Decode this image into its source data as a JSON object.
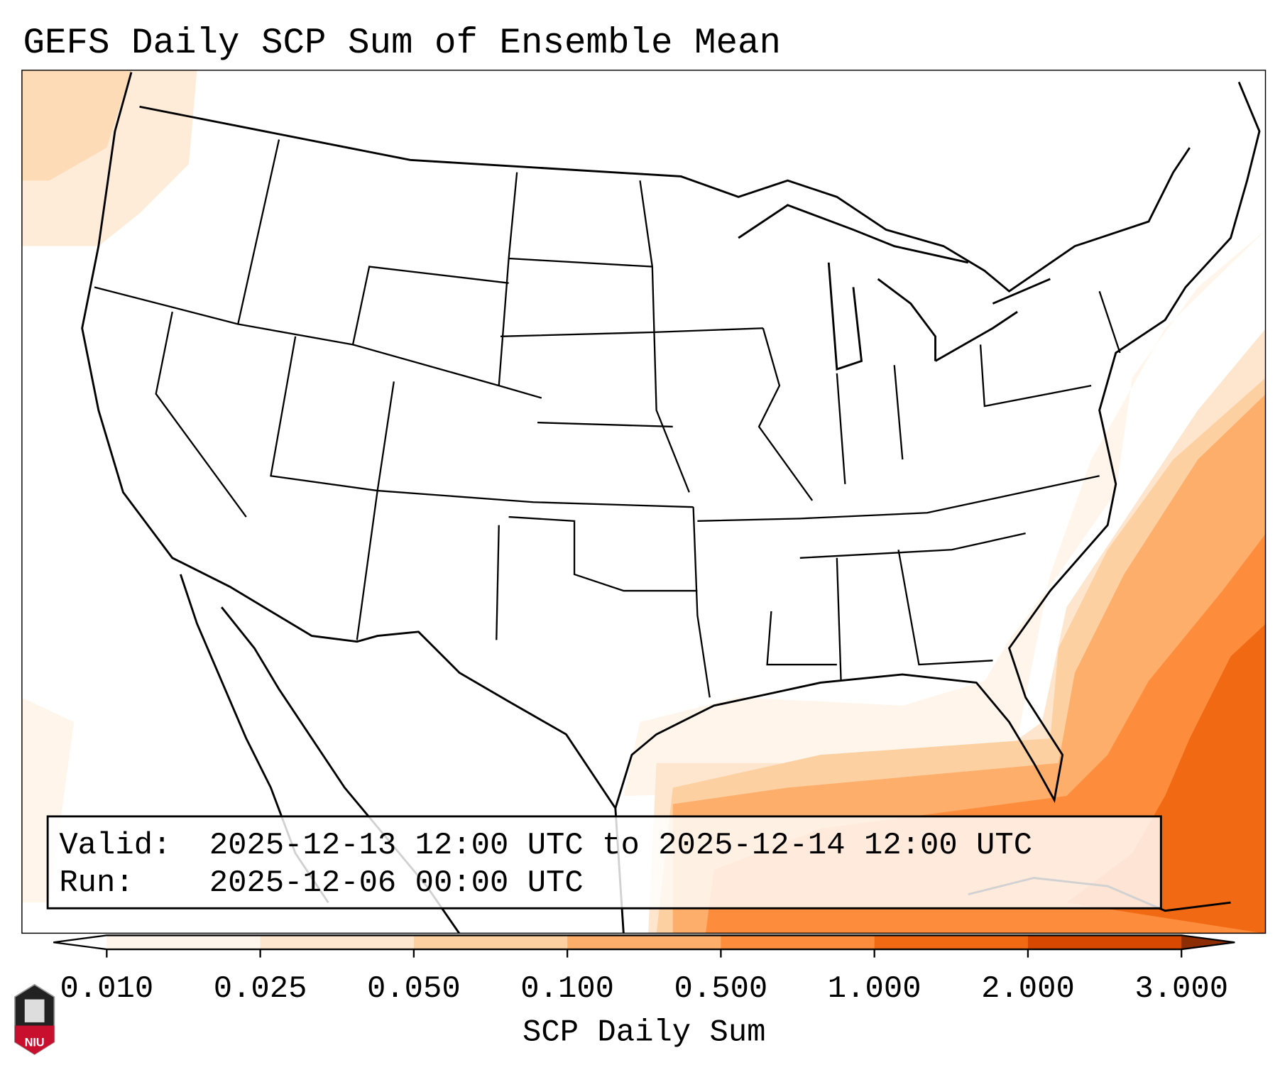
{
  "title": "GEFS Daily SCP Sum of Ensemble Mean",
  "info": {
    "valid_label": "Valid:",
    "valid_value": "2025-12-13 12:00 UTC to 2025-12-14 12:00 UTC",
    "run_label": "Run:",
    "run_value": "2025-12-06 00:00 UTC"
  },
  "colorbar": {
    "label": "SCP Daily Sum",
    "ticks": [
      "0.010",
      "0.025",
      "0.050",
      "0.100",
      "0.500",
      "1.000",
      "2.000",
      "3.000"
    ],
    "colors": [
      "#fff5eb",
      "#fee6ce",
      "#fdd0a2",
      "#fdae6b",
      "#fd8d3c",
      "#f16913",
      "#d94801"
    ],
    "under_color": "#ffffff",
    "over_color": "#8c2d04"
  },
  "logo": {
    "text": "NIU"
  }
}
